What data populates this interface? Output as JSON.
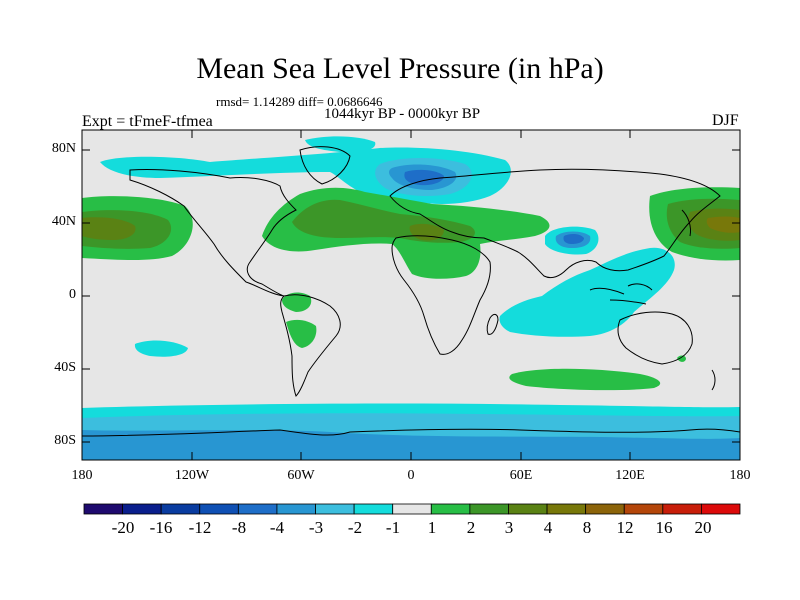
{
  "header": {
    "title": "Mean Sea Level Pressure (in hPa)",
    "stats": "rmsd= 1.14289 diff= 0.0686646",
    "period": "1044kyr BP - 0000kyr BP",
    "experiment": "Expt = tFmeF-tfmea",
    "season": "DJF"
  },
  "axes": {
    "y_ticks": [
      "80N",
      "40N",
      "0",
      "40S",
      "80S"
    ],
    "x_ticks": [
      "180",
      "120W",
      "60W",
      "0",
      "60E",
      "120E",
      "180"
    ]
  },
  "colorbar": {
    "labels": [
      "-20",
      "-16",
      "-12",
      "-8",
      "-4",
      "-3",
      "-2",
      "-1",
      "1",
      "2",
      "3",
      "4",
      "8",
      "12",
      "16",
      "20"
    ],
    "colors": [
      "#1e0a6e",
      "#0a1e8c",
      "#0a3ca0",
      "#0f50b4",
      "#1e6ec8",
      "#2896d2",
      "#3cbede",
      "#14dcdc",
      "#e6e6e6",
      "#28be46",
      "#3c9628",
      "#5a8214",
      "#78780a",
      "#8c640a",
      "#b4460a",
      "#c81e0a",
      "#dc0a0a"
    ]
  },
  "chart_data": {
    "type": "heatmap",
    "title": "Mean Sea Level Pressure (in hPa)",
    "subtitle": "1044kyr BP - 0000kyr BP",
    "variable": "mean sea level pressure difference (hPa)",
    "lon_range": [
      -180,
      180
    ],
    "lat_range": [
      -90,
      90
    ],
    "contour_levels": [
      -20,
      -16,
      -12,
      -8,
      -4,
      -3,
      -2,
      -1,
      1,
      2,
      3,
      4,
      8,
      12,
      16,
      20
    ],
    "features": [
      {
        "region": "North Atlantic / Arctic",
        "sign": "negative",
        "min_hPa": -4
      },
      {
        "region": "Tibetan Plateau",
        "sign": "negative",
        "min_hPa": -4
      },
      {
        "region": "Southern Ocean / Antarctica",
        "sign": "negative",
        "min_hPa": -3
      },
      {
        "region": "Indian Ocean",
        "sign": "negative",
        "min_hPa": -2
      },
      {
        "region": "North Pacific",
        "sign": "positive",
        "max_hPa": 4
      },
      {
        "region": "Subtropical North Atlantic to Eurasia",
        "sign": "positive",
        "max_hPa": 3
      },
      {
        "region": "Southern mid-latitudes (40S-50S)",
        "sign": "positive",
        "max_hPa": 2
      }
    ]
  }
}
